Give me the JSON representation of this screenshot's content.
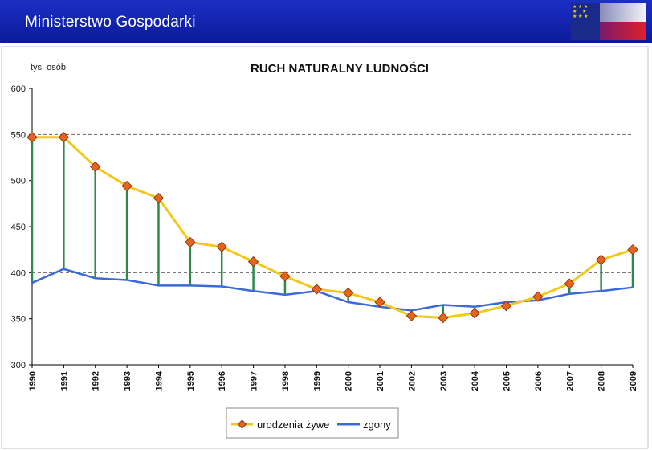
{
  "header": {
    "title": "Ministerstwo Gospodarki",
    "flag_colors": [
      "#1a2a8a",
      "#ffffff",
      "#e0202a"
    ]
  },
  "chart_data": {
    "type": "line",
    "title": "RUCH NATURALNY LUDNOŚCI",
    "ylabel": "tys. osób",
    "xlabel": "",
    "categories": [
      "1990",
      "1991",
      "1992",
      "1993",
      "1994",
      "1995",
      "1996",
      "1997",
      "1998",
      "1999",
      "2000",
      "2001",
      "2002",
      "2003",
      "2004",
      "2005",
      "2006",
      "2007",
      "2008",
      "2009"
    ],
    "ylim": [
      300,
      600
    ],
    "yticks": [
      300,
      350,
      400,
      450,
      500,
      550,
      600
    ],
    "grid": "dashed at 400 and 550",
    "legend_placement": "bottom-center",
    "series": [
      {
        "name": "urodzenia żywe",
        "color": "#f2c81a",
        "marker_color": "#e8641a",
        "values": [
          547,
          547,
          515,
          494,
          481,
          433,
          428,
          412,
          396,
          382,
          378,
          368,
          353,
          351,
          356,
          364,
          374,
          388,
          414,
          425
        ]
      },
      {
        "name": "zgony",
        "color": "#3a6ad8",
        "values": [
          389,
          404,
          394,
          392,
          386,
          386,
          385,
          380,
          376,
          380,
          368,
          363,
          359,
          365,
          363,
          368,
          370,
          377,
          380,
          384
        ]
      }
    ],
    "drop_lines_color": "#2e8a48"
  }
}
